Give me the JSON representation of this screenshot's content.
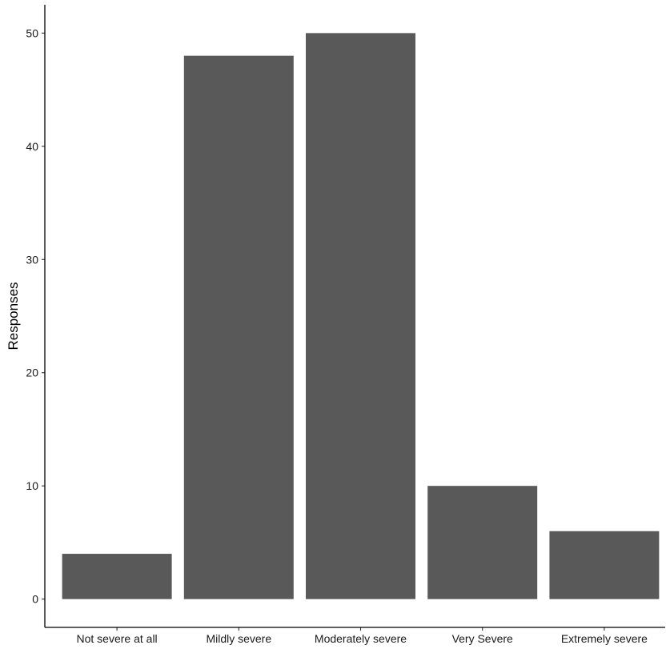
{
  "chart_data": {
    "type": "bar",
    "categories": [
      "Not severe at all",
      "Mildly severe",
      "Moderately severe",
      "Very Severe",
      "Extremely severe"
    ],
    "values": [
      4,
      48,
      50,
      10,
      6
    ],
    "title": "",
    "xlabel": "",
    "ylabel": "Responses",
    "ylim": [
      -2.5,
      52.5
    ],
    "yticks": [
      0,
      10,
      20,
      30,
      40,
      50
    ],
    "grid": false,
    "bar_color": "#595959"
  }
}
